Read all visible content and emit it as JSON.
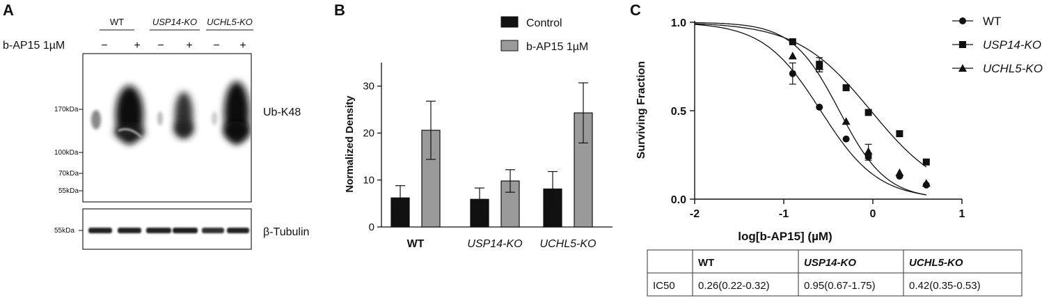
{
  "panel_labels": [
    "A",
    "B",
    "C"
  ],
  "blot": {
    "groups": [
      "WT",
      "USP14-KO",
      "UCHL5-KO"
    ],
    "treatment_label": "b-AP15 1µM",
    "lanes": [
      "−",
      "+",
      "−",
      "+",
      "−",
      "+"
    ],
    "top_markers": [
      "170kDa",
      "100kDa",
      "70kDa",
      "55kDa"
    ],
    "bottom_marker": "55kDa",
    "top_label": "Ub-K48",
    "bottom_label": "β-Tubulin"
  },
  "chart_data": [
    {
      "type": "bar",
      "panel": "B",
      "title": "",
      "ylabel": "Normalized Density",
      "xlabel": "",
      "categories": [
        "WT",
        "USP14-KO",
        "UCHL5-KO"
      ],
      "ylim": [
        0,
        35
      ],
      "yticks": [
        0,
        10,
        20,
        30
      ],
      "series": [
        {
          "name": "Control",
          "color": "#111111",
          "values": [
            6.2,
            5.9,
            8.1
          ],
          "errors": [
            2.6,
            2.4,
            3.7
          ]
        },
        {
          "name": "b-AP15 1µM",
          "color": "#9a9a9a",
          "values": [
            20.6,
            9.8,
            24.3
          ],
          "errors": [
            6.2,
            2.4,
            6.4
          ]
        }
      ],
      "legend_position": "top-right"
    },
    {
      "type": "scatter",
      "panel": "C",
      "title": "",
      "xlabel": "log[b-AP15] (µM)",
      "ylabel": "Surviving Fraction",
      "xlim": [
        -2,
        1
      ],
      "ylim": [
        0,
        1
      ],
      "xticks": [
        -2,
        -1,
        0,
        1
      ],
      "yticks": [
        "0.0",
        "0.5",
        "1.0"
      ],
      "x": [
        -0.9,
        -0.6,
        -0.3,
        -0.05,
        0.3,
        0.6
      ],
      "series": [
        {
          "name": "WT",
          "marker": "circle",
          "ic50": 0.26,
          "hill": 1.35,
          "values": [
            0.71,
            0.52,
            0.34,
            0.24,
            0.13,
            0.08
          ],
          "errors": [
            0.06,
            0.0,
            0.0,
            0.02,
            0.0,
            0.0
          ]
        },
        {
          "name": "USP14-KO",
          "marker": "square",
          "ic50": 0.95,
          "hill": 1.05,
          "values": [
            0.89,
            0.76,
            0.63,
            0.49,
            0.37,
            0.21
          ],
          "errors": [
            0.0,
            0.04,
            0.0,
            0.0,
            0.0,
            0.0
          ]
        },
        {
          "name": "UCHL5-KO",
          "marker": "triangle",
          "ic50": 0.42,
          "hill": 1.65,
          "values": [
            0.81,
            0.75,
            0.44,
            0.27,
            0.15,
            0.09
          ],
          "errors": [
            0.0,
            0.03,
            0.0,
            0.04,
            0.0,
            0.0
          ]
        }
      ],
      "legend_position": "top-right"
    },
    {
      "type": "table",
      "panel": "C",
      "header": [
        "",
        "WT",
        "USP14-KO",
        "UCHL5-KO"
      ],
      "rows": [
        [
          "IC50",
          "0.26(0.22-0.32)",
          "0.95(0.67-1.75)",
          "0.42(0.35-0.53)"
        ]
      ]
    }
  ]
}
